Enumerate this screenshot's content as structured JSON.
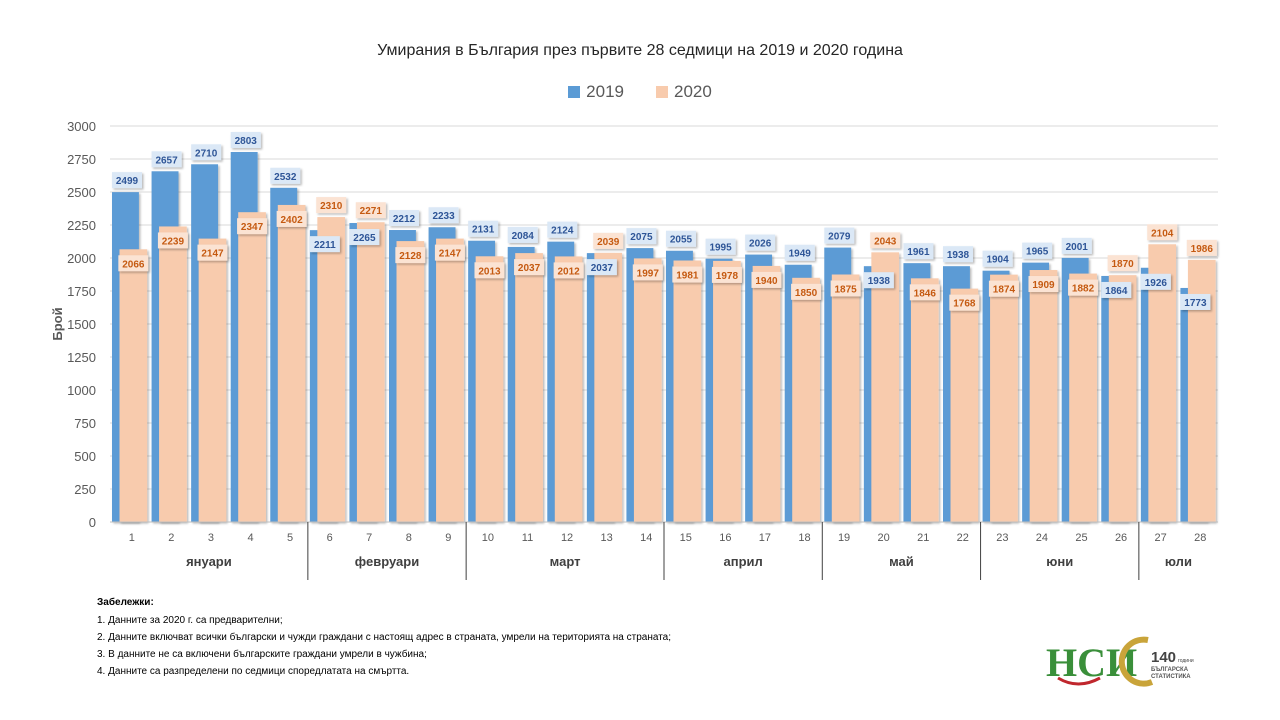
{
  "chart_data": {
    "type": "bar",
    "title": "Умирания в България през първите 28 седмици на 2019 и 2020 година",
    "ylabel": "Брой",
    "xlabel": "",
    "ylim": [
      0,
      3000
    ],
    "yticks": [
      0,
      250,
      500,
      750,
      1000,
      1250,
      1500,
      1750,
      2000,
      2250,
      2500,
      2750,
      3000
    ],
    "grid": true,
    "legend_position": "top",
    "categories": [
      "1",
      "2",
      "3",
      "4",
      "5",
      "6",
      "7",
      "8",
      "9",
      "10",
      "11",
      "12",
      "13",
      "14",
      "15",
      "16",
      "17",
      "18",
      "19",
      "20",
      "21",
      "22",
      "23",
      "24",
      "25",
      "26",
      "27",
      "28"
    ],
    "series": [
      {
        "name": "2019",
        "color": "#5b9bd5",
        "values": [
          2499,
          2657,
          2710,
          2803,
          2532,
          2211,
          2265,
          2212,
          2233,
          2131,
          2084,
          2124,
          2037,
          2075,
          2055,
          1995,
          2026,
          1949,
          2079,
          1938,
          1961,
          1938,
          1904,
          1965,
          2001,
          1864,
          1926,
          1773
        ]
      },
      {
        "name": "2020",
        "color": "#f8cbad",
        "values": [
          2066,
          2239,
          2147,
          2347,
          2402,
          2310,
          2271,
          2128,
          2147,
          2013,
          2037,
          2012,
          2039,
          1997,
          1981,
          1978,
          1940,
          1850,
          1875,
          2043,
          1846,
          1768,
          1874,
          1909,
          1882,
          1870,
          2104,
          1986
        ]
      }
    ],
    "months": [
      {
        "name": "януари",
        "from": 1,
        "to": 5
      },
      {
        "name": "февруари",
        "from": 6,
        "to": 9
      },
      {
        "name": "март",
        "from": 10,
        "to": 14
      },
      {
        "name": "април",
        "from": 15,
        "to": 18
      },
      {
        "name": "май",
        "from": 19,
        "to": 22
      },
      {
        "name": "юни",
        "from": 23,
        "to": 26
      },
      {
        "name": "юли",
        "from": 27,
        "to": 28
      }
    ]
  },
  "notes": {
    "title": "Забележки:",
    "items": [
      "1. Данните за 2020 г. са предварителни;",
      "2. Данните включват всички български и чужди граждани с настоящ адрес в страната, умрели на територията на страната;",
      "3. В данните не са включени българските граждани умрели в чужбина;",
      "4. Данните са разпределени по седмици споредлатата на смъртта."
    ]
  },
  "logos": {
    "nsi": "НСИ",
    "anniversary_number": "140",
    "anniversary_small": "години",
    "anniversary_line1": "БЪЛГАРСКА",
    "anniversary_line2": "СТАТИСТИКА"
  },
  "colors": {
    "label_2019_text": "#2e5597",
    "label_2020_text": "#c55a11",
    "nsi_green": "#3a8f3a",
    "nsi_red": "#c0272d",
    "gold": "#c9a43a"
  }
}
